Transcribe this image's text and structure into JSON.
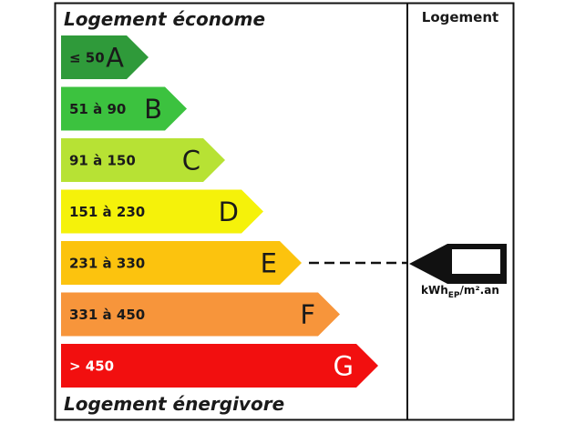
{
  "header_top": "Logement économe",
  "header_bottom": "Logement énergivore",
  "column_header": "Logement",
  "unit": {
    "main": "kWh",
    "sub": "EP",
    "rest": "/m².an"
  },
  "current_class": "E",
  "bands": [
    {
      "range": "≤ 50",
      "letter": "A",
      "color": "#2f9a3a",
      "text": "#1a1a1a"
    },
    {
      "range": "51 à 90",
      "letter": "B",
      "color": "#3cc23f",
      "text": "#1a1a1a"
    },
    {
      "range": "91 à 150",
      "letter": "C",
      "color": "#b7e234",
      "text": "#1a1a1a"
    },
    {
      "range": "151 à 230",
      "letter": "D",
      "color": "#f5f20a",
      "text": "#1a1a1a"
    },
    {
      "range": "231 à 330",
      "letter": "E",
      "color": "#fcc30e",
      "text": "#1a1a1a"
    },
    {
      "range": "331 à 450",
      "letter": "F",
      "color": "#f7953b",
      "text": "#1a1a1a"
    },
    {
      "range": "> 450",
      "letter": "G",
      "color": "#f20f0f",
      "text": "#ffffff"
    }
  ]
}
